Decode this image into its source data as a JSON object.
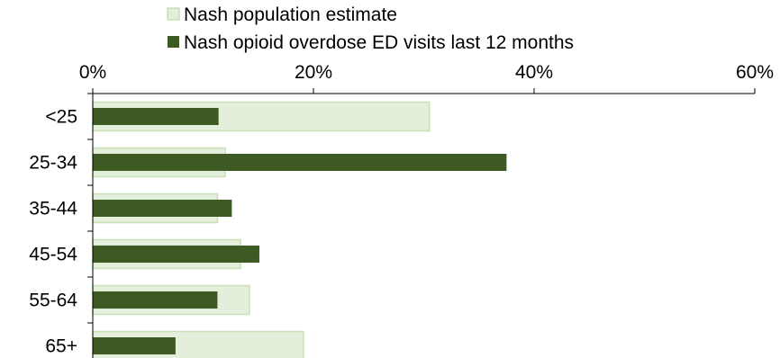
{
  "chart_data": {
    "type": "bar",
    "orientation": "horizontal",
    "title": "",
    "categories": [
      "<25",
      "25-34",
      "35-44",
      "45-54",
      "55-64",
      "65+"
    ],
    "series": [
      {
        "name": "Nash population estimate",
        "values": [
          30.5,
          12.0,
          11.3,
          13.4,
          14.2,
          19.1
        ]
      },
      {
        "name": "Nash opioid overdose ED visits last 12 months",
        "values": [
          11.4,
          37.5,
          12.6,
          15.1,
          11.3,
          7.5
        ]
      }
    ],
    "xlim": [
      0,
      60
    ],
    "xticks": [
      "0%",
      "20%",
      "40%",
      "60%"
    ],
    "x_axis_position": "top",
    "legend_position": "top",
    "grid": false
  },
  "colors": {
    "population_fill": "#e3efdb",
    "population_stroke": "#c9e0b8",
    "visits_fill": "#3c5a22",
    "axis": "#000000"
  }
}
